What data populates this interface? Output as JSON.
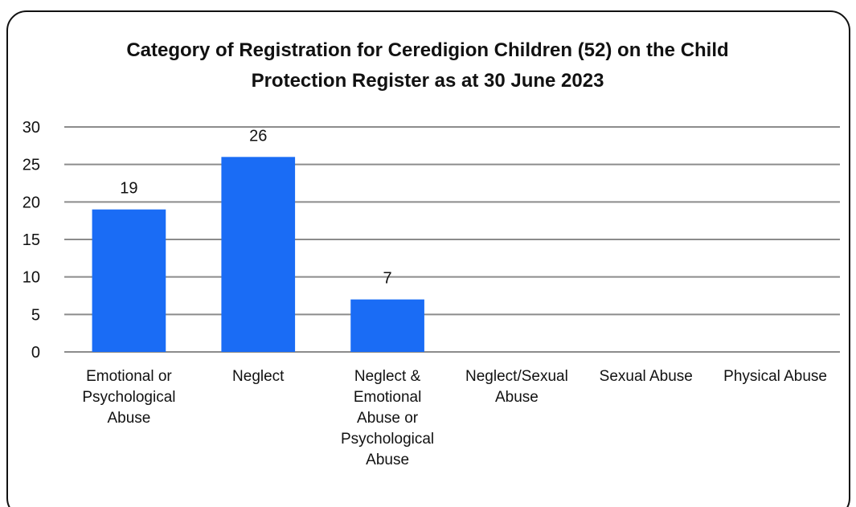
{
  "chart_data": {
    "type": "bar",
    "title": "Category of Registration for Ceredigion Children (52) on the Child Protection Register as at 30 June 2023",
    "categories": [
      "Emotional or Psychological Abuse",
      "Neglect",
      "Neglect & Emotional Abuse or Psychological Abuse",
      "Neglect/Sexual Abuse",
      "Sexual Abuse",
      "Physical Abuse"
    ],
    "values": [
      19,
      26,
      7,
      null,
      null,
      null
    ],
    "color": "#1a6cf5",
    "ylim": [
      0,
      30
    ],
    "yticks": [
      0,
      5,
      10,
      15,
      20,
      25,
      30
    ],
    "grid": true
  }
}
